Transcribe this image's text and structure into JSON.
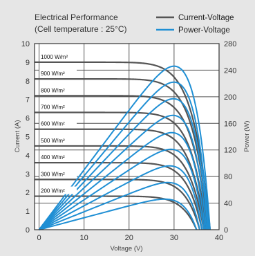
{
  "header": {
    "line1": "Electrical Performance",
    "line2": "(Cell temperature : 25°C)"
  },
  "legend": {
    "current_voltage": "Current-Voltage",
    "power_voltage": "Power-Voltage"
  },
  "colors": {
    "current_voltage": "#555555",
    "power_voltage": "#1f8fd4",
    "plot_background": "#ffffff",
    "grid": "#555555",
    "page_background": "#e6e6e6"
  },
  "chart_data": {
    "type": "line",
    "title": "",
    "xlabel": "Voltage (V)",
    "ylabel_left": "Current (A)",
    "ylabel_right": "Power (W)",
    "xlim": [
      -1,
      40
    ],
    "ylim_left": [
      0,
      10
    ],
    "ylim_right": [
      0,
      280
    ],
    "xticks": [
      "0",
      "10",
      "20",
      "30",
      "40"
    ],
    "yticks_left": [
      "0",
      "1",
      "2",
      "3",
      "4",
      "5",
      "6",
      "7",
      "8",
      "9",
      "10"
    ],
    "yticks_right": [
      "0",
      "40",
      "80",
      "120",
      "160",
      "200",
      "240",
      "280"
    ],
    "grid": true,
    "legend_position": "top-right",
    "series": [
      {
        "label": "1000 W/m²",
        "isc": 9.0,
        "voc": 38.0,
        "pmax": 246
      },
      {
        "label": "900 W/m²",
        "isc": 8.1,
        "voc": 37.7,
        "pmax": 222
      },
      {
        "label": "800 W/m²",
        "isc": 7.2,
        "voc": 37.5,
        "pmax": 197
      },
      {
        "label": "700 W/m²",
        "isc": 6.3,
        "voc": 37.2,
        "pmax": 172
      },
      {
        "label": "600 W/m²",
        "isc": 5.4,
        "voc": 36.9,
        "pmax": 146
      },
      {
        "label": "500 W/m²",
        "isc": 4.5,
        "voc": 36.6,
        "pmax": 121
      },
      {
        "label": "400 W/m²",
        "isc": 3.6,
        "voc": 36.2,
        "pmax": 96
      },
      {
        "label": "300 W/m²",
        "isc": 2.7,
        "voc": 35.7,
        "pmax": 71
      },
      {
        "label": "200 W/m²",
        "isc": 1.8,
        "voc": 35.0,
        "pmax": 46
      }
    ]
  }
}
